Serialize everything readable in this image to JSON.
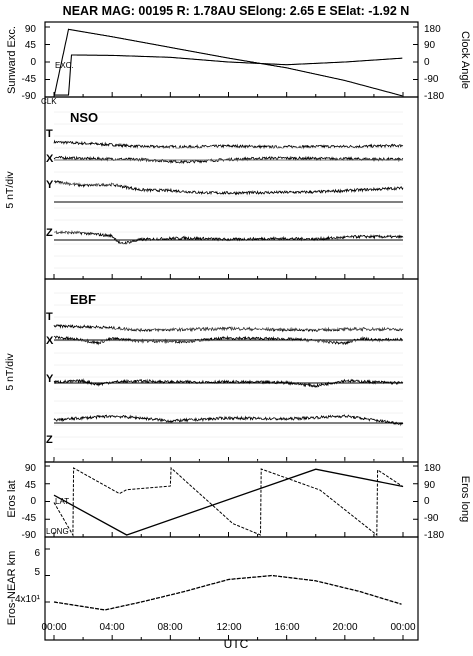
{
  "header": "NEAR MAG: 00195  R: 1.78AU  SElong:    2.65 E  SElat:   -1.92 N",
  "chart_data": [
    {
      "type": "line",
      "panel": "sunward-clock",
      "ylabel_left": "Sunward Exc.",
      "ylabel_right": "Clock Angle",
      "left_ticks": [
        "90",
        "45",
        "0",
        "-45",
        "-90"
      ],
      "right_ticks": [
        "180",
        "90",
        "0",
        "-90",
        "-180"
      ],
      "ylim_left": [
        -90,
        90
      ],
      "ylim_right": [
        -180,
        180
      ],
      "series": [
        {
          "name": "EXC.",
          "axis": "left",
          "x": [
            0,
            1,
            1.2,
            4,
            8,
            12,
            16,
            20,
            24
          ],
          "y": [
            -85,
            -85,
            18,
            17,
            12,
            0,
            -7,
            0,
            10
          ]
        },
        {
          "name": "CLK",
          "axis": "right",
          "x": [
            0,
            1,
            4,
            8,
            12,
            16,
            20,
            24
          ],
          "y": [
            -180,
            168,
            130,
            75,
            20,
            -30,
            -95,
            -175
          ]
        }
      ]
    },
    {
      "type": "line",
      "panel": "nso",
      "title": "NSO",
      "ylabel": "5 nT/div",
      "series": [
        {
          "name": "T",
          "x": [
            0,
            3,
            6,
            9,
            12,
            15,
            18,
            21,
            24
          ],
          "y": [
            1.2,
            0.8,
            0.3,
            0.2,
            0.4,
            0.2,
            0.3,
            0.3,
            0.5
          ]
        },
        {
          "name": "X",
          "x": [
            0,
            2,
            4,
            6,
            9,
            12,
            15,
            18,
            21,
            24
          ],
          "y": [
            0.5,
            0.3,
            0.2,
            0.1,
            -0.4,
            0.1,
            0.4,
            0.3,
            0.2,
            0.1
          ]
        },
        {
          "name": "Y",
          "x": [
            0,
            2,
            4,
            6,
            8,
            10,
            12,
            15,
            18,
            21,
            24
          ],
          "y": [
            4.1,
            3.3,
            3.5,
            2.4,
            2.3,
            1.9,
            1.8,
            1.9,
            2.0,
            2.4,
            2.8
          ]
        },
        {
          "name": "Z",
          "x": [
            0,
            2,
            4,
            4.6,
            6,
            9,
            12,
            15,
            18,
            21,
            24
          ],
          "y": [
            1.6,
            1.4,
            0.8,
            -0.8,
            0.1,
            0.4,
            0.1,
            0.3,
            0.2,
            0.7,
            0.6
          ]
        }
      ]
    },
    {
      "type": "line",
      "panel": "ebf",
      "title": "EBF",
      "ylabel": "5 nT/div",
      "series": [
        {
          "name": "T",
          "x": [
            0,
            3,
            6,
            9,
            12,
            15,
            18,
            21,
            24
          ],
          "y": [
            1.0,
            0.8,
            0.2,
            0.3,
            0.5,
            0.3,
            0.2,
            0.4,
            0.3
          ]
        },
        {
          "name": "X",
          "x": [
            0,
            2,
            3,
            4,
            6,
            9,
            12,
            16,
            18,
            20,
            21,
            22,
            24
          ],
          "y": [
            0.6,
            0.0,
            -0.6,
            0.3,
            -0.2,
            -0.3,
            0.4,
            0.2,
            -0.1,
            -0.7,
            0.3,
            0.0,
            0.1
          ]
        },
        {
          "name": "Y",
          "x": [
            0,
            2,
            3,
            4,
            6,
            8,
            12,
            16,
            18,
            20,
            21,
            24
          ],
          "y": [
            0.2,
            0.4,
            -0.3,
            0.2,
            0.4,
            0.2,
            0.2,
            0.1,
            -0.6,
            0.5,
            0.3,
            0.0
          ]
        },
        {
          "name": "Z",
          "x": [
            0,
            2,
            4,
            6,
            8,
            12,
            16,
            20,
            22,
            24
          ],
          "y": [
            0.6,
            1.0,
            1.4,
            1.0,
            0.4,
            1.0,
            0.8,
            1.4,
            0.6,
            -0.2
          ]
        }
      ]
    },
    {
      "type": "line",
      "panel": "eros-position",
      "ylabel_left": "Eros lat",
      "ylabel_right": "Eros long",
      "left_ticks": [
        "90",
        "45",
        "0",
        "-45",
        "-90"
      ],
      "right_ticks": [
        "180",
        "90",
        "0",
        "-90",
        "-180"
      ],
      "ylim_left": [
        -90,
        90
      ],
      "ylim_right": [
        -180,
        180
      ],
      "series": [
        {
          "name": "LAT.",
          "axis": "left",
          "x": [
            0,
            5,
            18,
            24
          ],
          "y": [
            16,
            -85,
            82,
            38
          ]
        },
        {
          "name": "LONG",
          "axis": "right",
          "x": [
            0,
            1.3,
            1.35,
            4.5,
            5,
            8,
            8.05,
            12.3,
            14.2,
            14.25,
            18.3,
            22.2,
            22.25,
            24
          ],
          "y": [
            -5,
            -170,
            170,
            40,
            60,
            78,
            170,
            -112,
            -170,
            165,
            58,
            -170,
            160,
            75
          ]
        }
      ]
    },
    {
      "type": "line",
      "panel": "eros-near-distance",
      "ylabel": "Eros-NEAR km",
      "y_ticks": [
        "6",
        "5",
        "4x10¹"
      ],
      "x": [
        0,
        3.5,
        6,
        9,
        12,
        15,
        18,
        21,
        24
      ],
      "values": [
        4.0,
        3.7,
        4.0,
        4.4,
        4.85,
        5.0,
        4.8,
        4.4,
        3.9
      ]
    }
  ],
  "x_axis": {
    "label": "UTC",
    "tick_labels": [
      "00:00",
      "04:00",
      "08:00",
      "12:00",
      "16:00",
      "20:00",
      "00:00"
    ],
    "range": [
      0,
      24
    ]
  }
}
